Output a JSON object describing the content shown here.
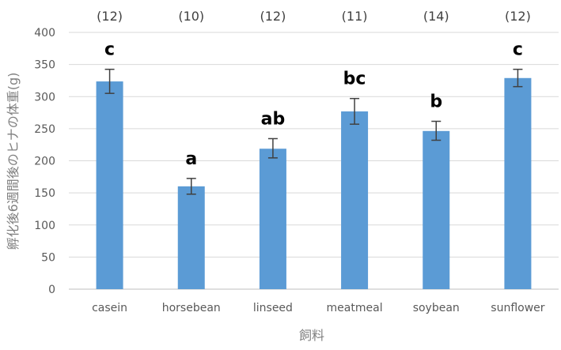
{
  "chart_data": {
    "type": "bar",
    "categories": [
      "casein",
      "horsebean",
      "linseed",
      "meatmeal",
      "soybean",
      "sunflower"
    ],
    "values": [
      323.6,
      160.2,
      218.8,
      276.9,
      246.4,
      328.9
    ],
    "error_high": [
      342.5,
      172.5,
      234.5,
      297.0,
      261.5,
      342.5
    ],
    "error_low": [
      305.0,
      148.0,
      204.5,
      257.0,
      232.0,
      315.5
    ],
    "sample_sizes": [
      "(12)",
      "(10)",
      "(12)",
      "(11)",
      "(14)",
      "(12)"
    ],
    "significance_letters": [
      "c",
      "a",
      "ab",
      "bc",
      "b",
      "c"
    ],
    "xlabel": "飼料",
    "ylabel": "孵化後6週間後のヒナの体重(g)",
    "ylim": [
      0,
      400
    ],
    "yticks": [
      0,
      50,
      100,
      150,
      200,
      250,
      300,
      350,
      400
    ],
    "grid": true,
    "bar_color": "#5B9BD5"
  }
}
